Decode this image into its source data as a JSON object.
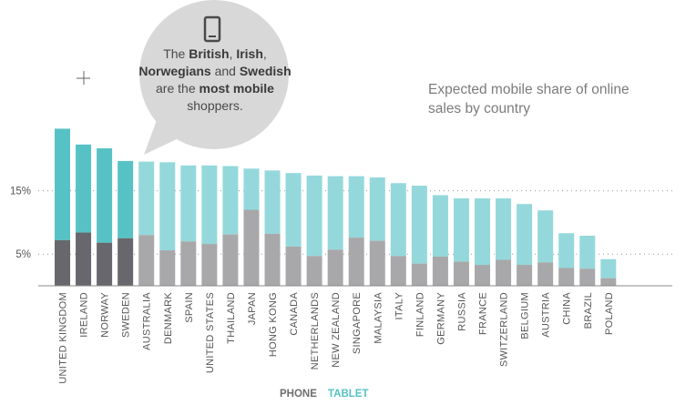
{
  "callout": {
    "icon": "phone-icon",
    "parts": [
      {
        "text": "The ",
        "bold": false
      },
      {
        "text": "British",
        "bold": true
      },
      {
        "text": ", ",
        "bold": false
      },
      {
        "text": "Irish",
        "bold": true
      },
      {
        "text": ", ",
        "bold": false
      },
      {
        "text": "Norwegians",
        "bold": true
      },
      {
        "text": " and ",
        "bold": false
      },
      {
        "text": "Swedish",
        "bold": true
      },
      {
        "text": " are the ",
        "bold": false
      },
      {
        "text": "most mobile",
        "bold": true
      },
      {
        "text": " shoppers.",
        "bold": false
      }
    ]
  },
  "chart_data": {
    "type": "bar",
    "stacked": true,
    "title": "Expected mobile share of online sales by country",
    "categories": [
      "UNITED KINGDOM",
      "IRELAND",
      "NORWAY",
      "SWEDEN",
      "AUSTRALIA",
      "DENMARK",
      "SPAIN",
      "UNITED STATES",
      "THAILAND",
      "JAPAN",
      "HONG KONG",
      "CANADA",
      "NETHERLANDS",
      "NEW ZEALAND",
      "SINGAPORE",
      "MALAYSIA",
      "ITALY",
      "FINLAND",
      "GERMANY",
      "RUSSIA",
      "FRANCE",
      "SWITZERLAND",
      "BELGIUM",
      "AUSTRIA",
      "CHINA",
      "BRAZIL",
      "POLAND"
    ],
    "series": [
      {
        "name": "PHONE",
        "values": [
          7.2,
          8.4,
          6.8,
          7.5,
          8.0,
          5.6,
          7.0,
          6.6,
          8.1,
          12.0,
          8.2,
          6.2,
          4.7,
          5.7,
          7.6,
          7.1,
          4.7,
          3.5,
          4.6,
          3.8,
          3.3,
          4.1,
          3.3,
          3.7,
          2.8,
          2.7,
          1.2
        ]
      },
      {
        "name": "TABLET",
        "values": [
          17.6,
          13.9,
          14.9,
          12.2,
          11.6,
          13.9,
          12.0,
          12.4,
          10.8,
          6.5,
          10.0,
          11.6,
          12.7,
          11.6,
          9.7,
          10.0,
          11.5,
          12.3,
          9.7,
          10.0,
          10.5,
          9.7,
          9.6,
          8.2,
          5.5,
          5.2,
          3.0
        ]
      }
    ],
    "yticks": [
      "5%",
      "15%"
    ],
    "ytick_values": [
      5,
      15
    ],
    "ylim": [
      0,
      25
    ],
    "legend": {
      "position": "bottom-center",
      "items": [
        "PHONE",
        "TABLET"
      ]
    },
    "colors": {
      "phone_highlight": "#67676d",
      "tablet_highlight": "#56c2c6",
      "phone": "#a8a8aa",
      "tablet": "#94d8db",
      "legend_phone": "#6e6e6e",
      "legend_tablet": "#56c2c6"
    },
    "highlighted_count": 4,
    "grid": "dotted horizontal at tick values"
  }
}
